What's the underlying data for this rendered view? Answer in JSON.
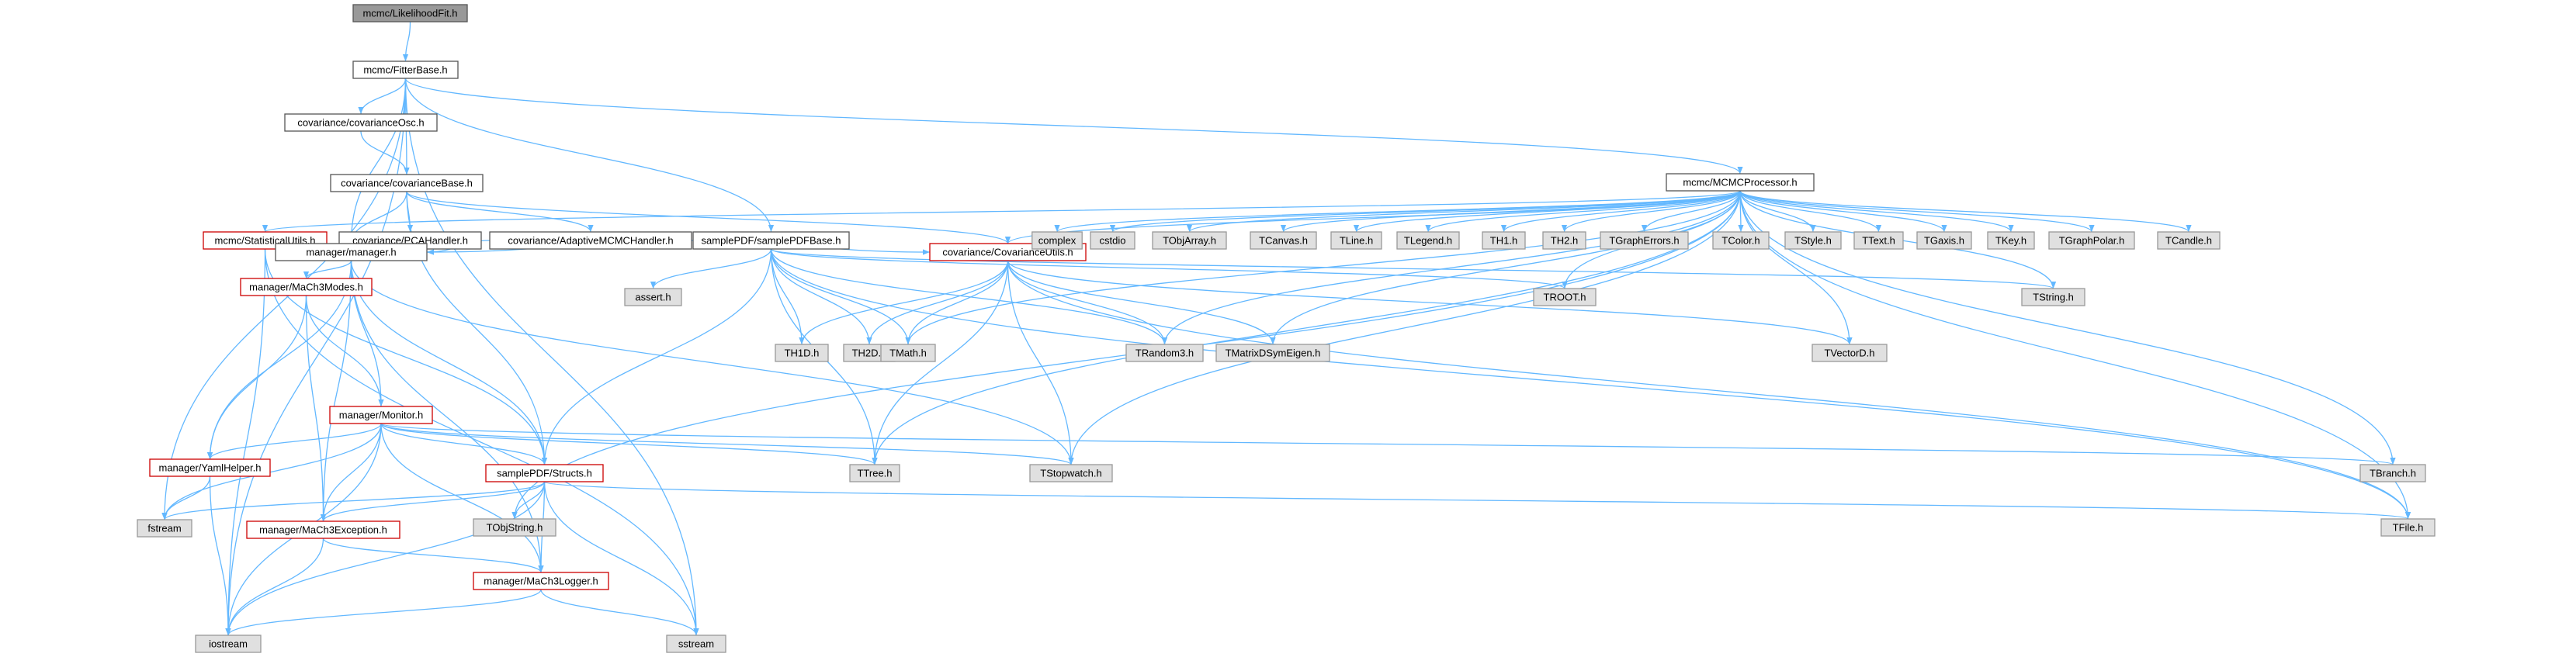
{
  "graph": {
    "colors": {
      "edge": "#63b8ff",
      "text": "#000000",
      "root_fill": "#999999",
      "plain_fill": "#ffffff",
      "plain_stroke": "#555555",
      "incomplete_stroke": "#cc0000",
      "external_fill": "#e0e0e0",
      "external_stroke": "#999999"
    },
    "nodes": [
      {
        "id": "root",
        "label": "mcmc/LikelihoodFit.h",
        "style": "root"
      },
      {
        "id": "fitterbase",
        "label": "mcmc/FitterBase.h",
        "style": "plain"
      },
      {
        "id": "covosc",
        "label": "covariance/covarianceOsc.h",
        "style": "plain"
      },
      {
        "id": "covbase",
        "label": "covariance/covarianceBase.h",
        "style": "plain"
      },
      {
        "id": "mcmcproc",
        "label": "mcmc/MCMCProcessor.h",
        "style": "plain"
      },
      {
        "id": "statutils",
        "label": "mcmc/StatisticalUtils.h",
        "style": "incomplete"
      },
      {
        "id": "pca",
        "label": "covariance/PCAHandler.h",
        "style": "plain"
      },
      {
        "id": "adaptive",
        "label": "covariance/AdaptiveMCMCHandler.h",
        "style": "plain"
      },
      {
        "id": "samplepdf",
        "label": "samplePDF/samplePDFBase.h",
        "style": "plain"
      },
      {
        "id": "manager",
        "label": "manager/manager.h",
        "style": "plain"
      },
      {
        "id": "covutils",
        "label": "covariance/CovarianceUtils.h",
        "style": "incomplete"
      },
      {
        "id": "mach3modes",
        "label": "manager/MaCh3Modes.h",
        "style": "incomplete"
      },
      {
        "id": "monitor",
        "label": "manager/Monitor.h",
        "style": "incomplete"
      },
      {
        "id": "yamlhelper",
        "label": "manager/YamlHelper.h",
        "style": "incomplete"
      },
      {
        "id": "structs",
        "label": "samplePDF/Structs.h",
        "style": "incomplete"
      },
      {
        "id": "exception",
        "label": "manager/MaCh3Exception.h",
        "style": "incomplete"
      },
      {
        "id": "logger",
        "label": "manager/MaCh3Logger.h",
        "style": "incomplete"
      },
      {
        "id": "complex",
        "label": "complex",
        "style": "external"
      },
      {
        "id": "cstdio",
        "label": "cstdio",
        "style": "external"
      },
      {
        "id": "tobjarray",
        "label": "TObjArray.h",
        "style": "external"
      },
      {
        "id": "tcanvas",
        "label": "TCanvas.h",
        "style": "external"
      },
      {
        "id": "tline",
        "label": "TLine.h",
        "style": "external"
      },
      {
        "id": "tlegend",
        "label": "TLegend.h",
        "style": "external"
      },
      {
        "id": "th1",
        "label": "TH1.h",
        "style": "external"
      },
      {
        "id": "th2",
        "label": "TH2.h",
        "style": "external"
      },
      {
        "id": "tgrapherrors",
        "label": "TGraphErrors.h",
        "style": "external"
      },
      {
        "id": "tcolor",
        "label": "TColor.h",
        "style": "external"
      },
      {
        "id": "tstyle",
        "label": "TStyle.h",
        "style": "external"
      },
      {
        "id": "ttext",
        "label": "TText.h",
        "style": "external"
      },
      {
        "id": "tgaxis",
        "label": "TGaxis.h",
        "style": "external"
      },
      {
        "id": "tkey",
        "label": "TKey.h",
        "style": "external"
      },
      {
        "id": "tgraphpolar",
        "label": "TGraphPolar.h",
        "style": "external"
      },
      {
        "id": "tcandle",
        "label": "TCandle.h",
        "style": "external"
      },
      {
        "id": "assert",
        "label": "assert.h",
        "style": "external"
      },
      {
        "id": "troot",
        "label": "TROOT.h",
        "style": "external"
      },
      {
        "id": "tstring",
        "label": "TString.h",
        "style": "external"
      },
      {
        "id": "th1d",
        "label": "TH1D.h",
        "style": "external"
      },
      {
        "id": "th2d",
        "label": "TH2D.h",
        "style": "external"
      },
      {
        "id": "tmath",
        "label": "TMath.h",
        "style": "external"
      },
      {
        "id": "trandom3",
        "label": "TRandom3.h",
        "style": "external"
      },
      {
        "id": "tmatrixdsymeigen",
        "label": "TMatrixDSymEigen.h",
        "style": "external"
      },
      {
        "id": "tvectord",
        "label": "TVectorD.h",
        "style": "external"
      },
      {
        "id": "ttree",
        "label": "TTree.h",
        "style": "external"
      },
      {
        "id": "tstopwatch",
        "label": "TStopwatch.h",
        "style": "external"
      },
      {
        "id": "tbranch",
        "label": "TBranch.h",
        "style": "external"
      },
      {
        "id": "tfile",
        "label": "TFile.h",
        "style": "external"
      },
      {
        "id": "tobjstring",
        "label": "TObjString.h",
        "style": "external"
      },
      {
        "id": "fstream",
        "label": "fstream",
        "style": "external"
      },
      {
        "id": "iostream",
        "label": "iostream",
        "style": "external"
      },
      {
        "id": "sstream",
        "label": "sstream",
        "style": "external"
      }
    ],
    "edges": [
      [
        "root",
        "fitterbase"
      ],
      [
        "fitterbase",
        "covosc"
      ],
      [
        "fitterbase",
        "covbase"
      ],
      [
        "fitterbase",
        "mcmcproc"
      ],
      [
        "fitterbase",
        "samplepdf"
      ],
      [
        "fitterbase",
        "manager"
      ],
      [
        "fitterbase",
        "fstream"
      ],
      [
        "fitterbase",
        "iostream"
      ],
      [
        "fitterbase",
        "sstream"
      ],
      [
        "covosc",
        "covbase"
      ],
      [
        "covbase",
        "pca"
      ],
      [
        "covbase",
        "adaptive"
      ],
      [
        "covbase",
        "covutils"
      ],
      [
        "covbase",
        "manager"
      ],
      [
        "covbase",
        "structs"
      ],
      [
        "pca",
        "manager"
      ],
      [
        "adaptive",
        "manager"
      ],
      [
        "adaptive",
        "covutils"
      ],
      [
        "mcmcproc",
        "statutils"
      ],
      [
        "mcmcproc",
        "complex"
      ],
      [
        "mcmcproc",
        "cstdio"
      ],
      [
        "mcmcproc",
        "tobjarray"
      ],
      [
        "mcmcproc",
        "tcanvas"
      ],
      [
        "mcmcproc",
        "tline"
      ],
      [
        "mcmcproc",
        "tlegend"
      ],
      [
        "mcmcproc",
        "th1"
      ],
      [
        "mcmcproc",
        "th2"
      ],
      [
        "mcmcproc",
        "tgrapherrors"
      ],
      [
        "mcmcproc",
        "tcolor"
      ],
      [
        "mcmcproc",
        "tstyle"
      ],
      [
        "mcmcproc",
        "ttext"
      ],
      [
        "mcmcproc",
        "tgaxis"
      ],
      [
        "mcmcproc",
        "tkey"
      ],
      [
        "mcmcproc",
        "tgraphpolar"
      ],
      [
        "mcmcproc",
        "tcandle"
      ],
      [
        "mcmcproc",
        "troot"
      ],
      [
        "mcmcproc",
        "tstring"
      ],
      [
        "mcmcproc",
        "tmath"
      ],
      [
        "mcmcproc",
        "trandom3"
      ],
      [
        "mcmcproc",
        "tmatrixdsymeigen"
      ],
      [
        "mcmcproc",
        "tvectord"
      ],
      [
        "mcmcproc",
        "ttree"
      ],
      [
        "mcmcproc",
        "tstopwatch"
      ],
      [
        "mcmcproc",
        "tbranch"
      ],
      [
        "mcmcproc",
        "tfile"
      ],
      [
        "mcmcproc",
        "tobjstring"
      ],
      [
        "mcmcproc",
        "covutils"
      ],
      [
        "statutils",
        "manager"
      ],
      [
        "statutils",
        "structs"
      ],
      [
        "statutils",
        "iostream"
      ],
      [
        "statutils",
        "sstream"
      ],
      [
        "samplepdf",
        "manager"
      ],
      [
        "samplepdf",
        "assert"
      ],
      [
        "samplepdf",
        "th1d"
      ],
      [
        "samplepdf",
        "th2d"
      ],
      [
        "samplepdf",
        "tmath"
      ],
      [
        "samplepdf",
        "structs"
      ],
      [
        "samplepdf",
        "ttree"
      ],
      [
        "samplepdf",
        "troot"
      ],
      [
        "samplepdf",
        "tstring"
      ],
      [
        "samplepdf",
        "trandom3"
      ],
      [
        "samplepdf",
        "tfile"
      ],
      [
        "covutils",
        "th1d"
      ],
      [
        "covutils",
        "th2d"
      ],
      [
        "covutils",
        "tmath"
      ],
      [
        "covutils",
        "trandom3"
      ],
      [
        "covutils",
        "tmatrixdsymeigen"
      ],
      [
        "covutils",
        "tvectord"
      ],
      [
        "covutils",
        "ttree"
      ],
      [
        "covutils",
        "tstopwatch"
      ],
      [
        "covutils",
        "tfile"
      ],
      [
        "manager",
        "mach3modes"
      ],
      [
        "manager",
        "monitor"
      ],
      [
        "manager",
        "yamlhelper"
      ],
      [
        "manager",
        "structs"
      ],
      [
        "manager",
        "exception"
      ],
      [
        "manager",
        "logger"
      ],
      [
        "manager",
        "tstopwatch"
      ],
      [
        "mach3modes",
        "monitor"
      ],
      [
        "mach3modes",
        "yamlhelper"
      ],
      [
        "mach3modes",
        "exception"
      ],
      [
        "monitor",
        "yamlhelper"
      ],
      [
        "monitor",
        "structs"
      ],
      [
        "monitor",
        "exception"
      ],
      [
        "monitor",
        "logger"
      ],
      [
        "monitor",
        "fstream"
      ],
      [
        "monitor",
        "iostream"
      ],
      [
        "monitor",
        "ttree"
      ],
      [
        "monitor",
        "tstopwatch"
      ],
      [
        "monitor",
        "tbranch"
      ],
      [
        "yamlhelper",
        "fstream"
      ],
      [
        "yamlhelper",
        "iostream"
      ],
      [
        "structs",
        "fstream"
      ],
      [
        "structs",
        "iostream"
      ],
      [
        "structs",
        "sstream"
      ],
      [
        "structs",
        "exception"
      ],
      [
        "structs",
        "logger"
      ],
      [
        "structs",
        "tobjstring"
      ],
      [
        "structs",
        "tfile"
      ],
      [
        "exception",
        "logger"
      ],
      [
        "exception",
        "iostream"
      ],
      [
        "logger",
        "iostream"
      ],
      [
        "logger",
        "sstream"
      ]
    ]
  }
}
